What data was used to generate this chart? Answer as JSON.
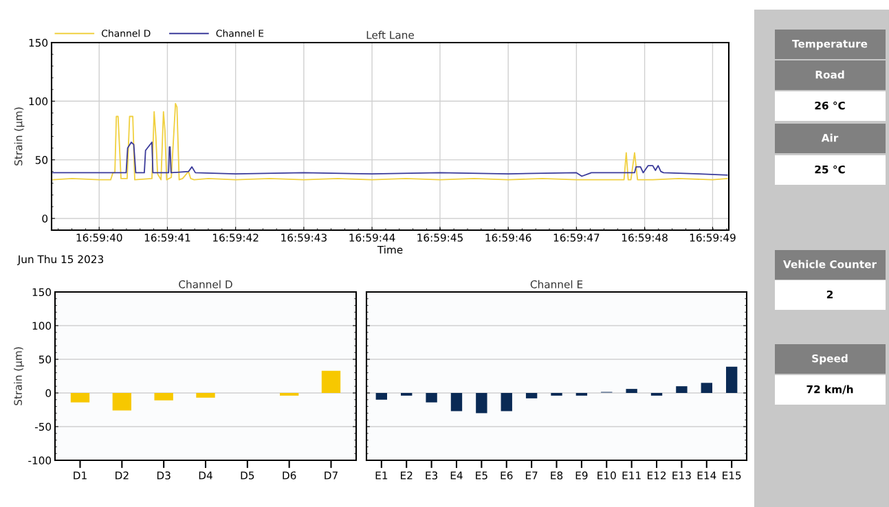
{
  "chart_data": [
    {
      "type": "line",
      "title": "Left Lane",
      "xlabel": "Time",
      "ylabel": "Strain (µm)",
      "annotations": [
        "Jun Thu 15 2023"
      ],
      "xlim": [
        16.99425,
        16.99701
      ],
      "ylim": [
        -10,
        150
      ],
      "yticks": [
        0,
        50,
        100,
        150
      ],
      "xticks": [
        {
          "value": 16.994444,
          "label": "16:59:40"
        },
        {
          "value": 16.994722,
          "label": "16:59:41"
        },
        {
          "value": 16.995,
          "label": "16:59:42"
        },
        {
          "value": 16.995278,
          "label": "16:59:43"
        },
        {
          "value": 16.995556,
          "label": "16:59:44"
        },
        {
          "value": 16.995833,
          "label": "16:59:45"
        },
        {
          "value": 16.996111,
          "label": "16:59:46"
        },
        {
          "value": 16.996389,
          "label": "16:59:47"
        },
        {
          "value": 16.996667,
          "label": "16:59:48"
        },
        {
          "value": 16.996944,
          "label": "16:59:49"
        }
      ],
      "grid": true,
      "legend": "top left",
      "marker": "none",
      "line_style": "solid",
      "series": [
        {
          "name": "Channel D",
          "color": "#f0d040",
          "x": [
            16.994256,
            16.994333,
            16.994444,
            16.994491,
            16.9945,
            16.994508,
            16.994514,
            16.994521,
            16.994533,
            16.994558,
            16.994568,
            16.994575,
            16.994581,
            16.994589,
            16.994659,
            16.994668,
            16.994675,
            16.994682,
            16.994696,
            16.994706,
            16.994712,
            16.994719,
            16.994738,
            16.994755,
            16.994761,
            16.99477,
            16.994784,
            16.994808,
            16.994817,
            16.994831,
            16.994889,
            16.995,
            16.995139,
            16.995278,
            16.995417,
            16.995556,
            16.995694,
            16.995833,
            16.995972,
            16.996111,
            16.99625,
            16.996389,
            16.996583,
            16.996592,
            16.9966,
            16.996611,
            16.996626,
            16.996638,
            16.9967,
            16.996806,
            16.996944,
            16.997003
          ],
          "values": [
            33,
            34,
            33,
            33,
            39,
            39,
            87,
            87,
            34,
            34,
            87,
            87,
            87,
            33,
            34,
            91,
            70,
            38,
            33,
            91,
            75,
            33,
            35,
            98,
            95,
            33,
            34,
            40,
            34,
            33,
            34,
            33,
            34,
            33,
            34,
            33,
            34,
            33,
            34,
            33,
            34,
            33,
            33,
            56,
            33,
            33,
            56,
            33,
            33,
            34,
            33,
            34
          ]
        },
        {
          "name": "Channel E",
          "color": "#3a3a9a",
          "x": [
            16.994256,
            16.994333,
            16.994444,
            16.9945,
            16.994554,
            16.99456,
            16.994575,
            16.994585,
            16.994593,
            16.994628,
            16.994633,
            16.994659,
            16.994663,
            16.994727,
            16.99473,
            16.994733,
            16.994737,
            16.994808,
            16.994822,
            16.994836,
            16.995,
            16.995278,
            16.995556,
            16.995833,
            16.996111,
            16.996389,
            16.996411,
            16.99645,
            16.996626,
            16.996632,
            16.99665,
            16.996661,
            16.996681,
            16.9967,
            16.996711,
            16.996722,
            16.996733,
            16.996744,
            16.996889,
            16.997003
          ],
          "values": [
            39,
            39,
            39,
            39,
            39,
            60,
            65,
            63,
            39,
            39,
            58,
            65,
            39,
            39,
            61,
            61,
            39,
            40,
            44,
            39,
            38,
            39,
            38,
            39,
            38,
            39,
            36,
            39,
            39,
            44,
            44,
            39,
            45,
            45,
            41,
            45,
            40,
            39,
            38,
            37
          ]
        }
      ]
    },
    {
      "type": "bar",
      "title": "Channel D",
      "ylabel": "Strain (µm)",
      "categories": [
        "D1",
        "D2",
        "D3",
        "D4",
        "D5",
        "D6",
        "D7"
      ],
      "values": [
        -14,
        -26,
        -11,
        -7,
        0,
        -4,
        33
      ],
      "color": "#f7c800",
      "ylim": [
        -100,
        150
      ],
      "yticks": [
        -100,
        -50,
        0,
        50,
        100,
        150
      ],
      "grid": "y"
    },
    {
      "type": "bar",
      "title": "Channel E",
      "categories": [
        "E1",
        "E2",
        "E3",
        "E4",
        "E5",
        "E6",
        "E7",
        "E8",
        "E9",
        "E10",
        "E11",
        "E12",
        "E13",
        "E14",
        "E15"
      ],
      "values": [
        -10,
        -4,
        -14,
        -27,
        -30,
        -27,
        -8,
        -4,
        -4,
        2,
        6,
        -4,
        10,
        15,
        39
      ],
      "colors": [
        "#0a2a55",
        "#0a2a55",
        "#0a2a55",
        "#0a2a55",
        "#0a2a55",
        "#0a2a55",
        "#0a2a55",
        "#0a2a55",
        "#0a2a55",
        "#8090a8",
        "#0a2a55",
        "#0a2a55",
        "#0a2a55",
        "#0a2a55",
        "#0a2a55"
      ],
      "ylim": [
        -100,
        150
      ],
      "yticks": [
        -100,
        -50,
        0,
        50,
        100,
        150
      ],
      "grid": "y",
      "tick_labels": "x"
    },
    {
      "type": "other",
      "annotations": [
        "Temperature",
        "Road",
        "26 °C",
        "Air",
        "25 °C",
        "Vehicle Counter",
        "2",
        "Speed",
        "72 km/h"
      ]
    }
  ]
}
